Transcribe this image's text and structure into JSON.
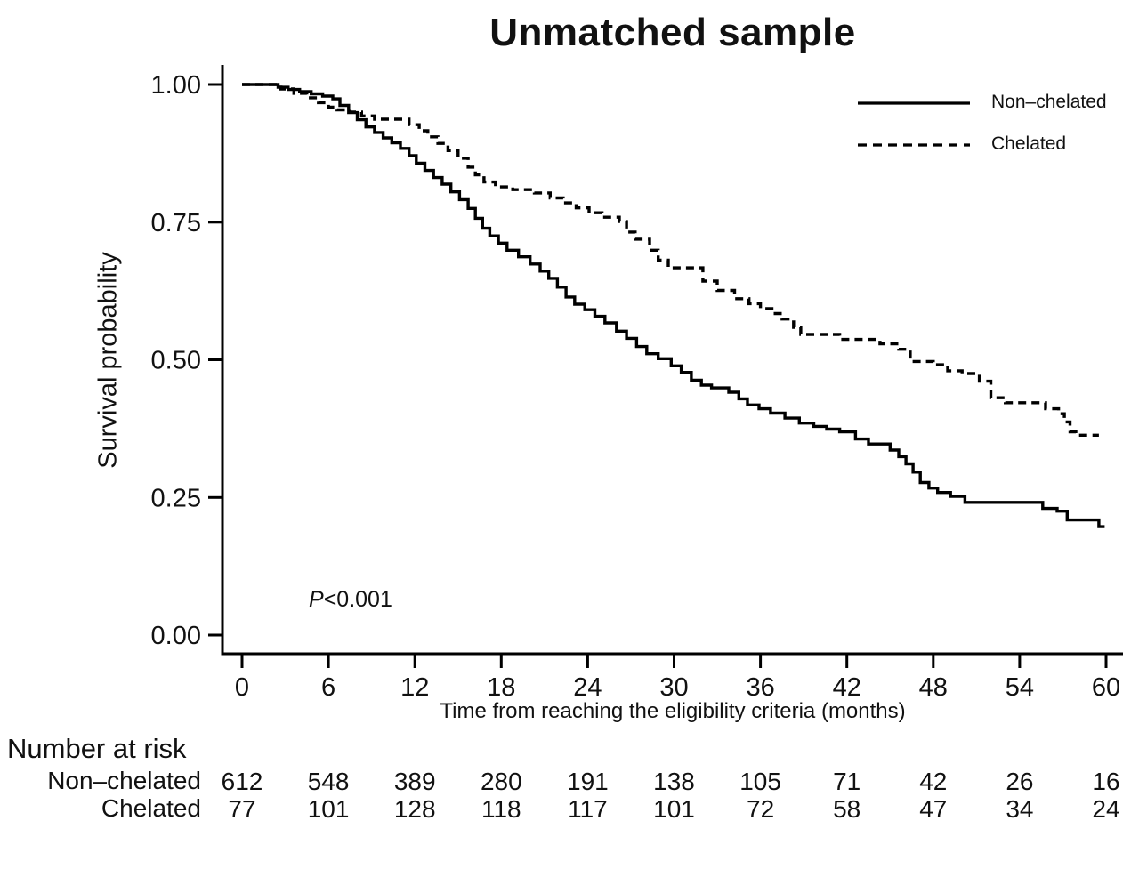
{
  "figure": {
    "background": "#ffffff",
    "line_color": "#000000",
    "text_color": "#111111"
  },
  "chart_data": {
    "type": "line",
    "subtype": "kaplan-meier-step",
    "title": "Unmatched sample",
    "xlabel": "Time from reaching the eligibility criteria (months)",
    "ylabel": "Survival probability",
    "xlim": [
      0,
      60
    ],
    "ylim": [
      0.0,
      1.0
    ],
    "grid": false,
    "legend_position": "top-right",
    "x_ticks": [
      {
        "value": 0,
        "label": "0"
      },
      {
        "value": 6,
        "label": "6"
      },
      {
        "value": 12,
        "label": "12"
      },
      {
        "value": 18,
        "label": "18"
      },
      {
        "value": 24,
        "label": "24"
      },
      {
        "value": 30,
        "label": "30"
      },
      {
        "value": 36,
        "label": "36"
      },
      {
        "value": 42,
        "label": "42"
      },
      {
        "value": 48,
        "label": "48"
      },
      {
        "value": 54,
        "label": "54"
      },
      {
        "value": 60,
        "label": "60"
      }
    ],
    "y_ticks": [
      {
        "value": 1.0,
        "label": "1.00"
      },
      {
        "value": 0.75,
        "label": "0.75"
      },
      {
        "value": 0.5,
        "label": "0.50"
      },
      {
        "value": 0.25,
        "label": "0.25"
      },
      {
        "value": 0.0,
        "label": "0.00"
      }
    ],
    "annotation": {
      "symbol": "P",
      "text": "<0.001"
    },
    "legend": [
      {
        "label": "Non–chelated",
        "line_style": "solid"
      },
      {
        "label": "Chelated",
        "line_style": "dashed"
      }
    ],
    "series": [
      {
        "name": "Non–chelated",
        "line_style": "solid",
        "end_time": 59.9,
        "points": [
          [
            0,
            1.0
          ],
          [
            2.5,
            0.995
          ],
          [
            3.2,
            0.991
          ],
          [
            4.0,
            0.987
          ],
          [
            4.8,
            0.983
          ],
          [
            5.6,
            0.979
          ],
          [
            6.3,
            0.974
          ],
          [
            6.8,
            0.962
          ],
          [
            7.4,
            0.949
          ],
          [
            8.0,
            0.936
          ],
          [
            8.6,
            0.923
          ],
          [
            9.2,
            0.913
          ],
          [
            9.8,
            0.903
          ],
          [
            10.4,
            0.894
          ],
          [
            11.0,
            0.884
          ],
          [
            11.6,
            0.871
          ],
          [
            12.1,
            0.857
          ],
          [
            12.7,
            0.844
          ],
          [
            13.3,
            0.831
          ],
          [
            13.9,
            0.819
          ],
          [
            14.5,
            0.805
          ],
          [
            15.1,
            0.791
          ],
          [
            15.7,
            0.775
          ],
          [
            16.2,
            0.757
          ],
          [
            16.7,
            0.739
          ],
          [
            17.2,
            0.725
          ],
          [
            17.8,
            0.712
          ],
          [
            18.4,
            0.699
          ],
          [
            19.2,
            0.687
          ],
          [
            20.0,
            0.674
          ],
          [
            20.7,
            0.661
          ],
          [
            21.3,
            0.648
          ],
          [
            21.9,
            0.632
          ],
          [
            22.5,
            0.614
          ],
          [
            23.1,
            0.601
          ],
          [
            23.8,
            0.591
          ],
          [
            24.5,
            0.579
          ],
          [
            25.2,
            0.567
          ],
          [
            26.0,
            0.552
          ],
          [
            26.7,
            0.539
          ],
          [
            27.4,
            0.524
          ],
          [
            28.1,
            0.511
          ],
          [
            28.9,
            0.502
          ],
          [
            29.8,
            0.489
          ],
          [
            30.5,
            0.477
          ],
          [
            31.2,
            0.463
          ],
          [
            31.9,
            0.454
          ],
          [
            32.6,
            0.449
          ],
          [
            33.8,
            0.441
          ],
          [
            34.5,
            0.429
          ],
          [
            35.1,
            0.418
          ],
          [
            35.9,
            0.411
          ],
          [
            36.7,
            0.403
          ],
          [
            37.7,
            0.394
          ],
          [
            38.7,
            0.385
          ],
          [
            39.7,
            0.379
          ],
          [
            40.6,
            0.374
          ],
          [
            41.5,
            0.369
          ],
          [
            42.6,
            0.356
          ],
          [
            43.5,
            0.347
          ],
          [
            45.0,
            0.336
          ],
          [
            45.6,
            0.324
          ],
          [
            46.1,
            0.311
          ],
          [
            46.6,
            0.296
          ],
          [
            47.1,
            0.277
          ],
          [
            47.7,
            0.267
          ],
          [
            48.3,
            0.259
          ],
          [
            49.2,
            0.252
          ],
          [
            50.2,
            0.241
          ],
          [
            55.6,
            0.23
          ],
          [
            56.6,
            0.225
          ],
          [
            57.3,
            0.209
          ],
          [
            59.5,
            0.197
          ]
        ]
      },
      {
        "name": "Chelated",
        "line_style": "dashed",
        "end_time": 59.5,
        "points": [
          [
            0,
            1.0
          ],
          [
            2.7,
            0.992
          ],
          [
            3.6,
            0.984
          ],
          [
            4.5,
            0.976
          ],
          [
            5.3,
            0.967
          ],
          [
            6.0,
            0.959
          ],
          [
            6.6,
            0.954
          ],
          [
            7.5,
            0.95
          ],
          [
            8.3,
            0.943
          ],
          [
            9.2,
            0.937
          ],
          [
            11.6,
            0.927
          ],
          [
            12.3,
            0.916
          ],
          [
            12.9,
            0.905
          ],
          [
            13.6,
            0.893
          ],
          [
            14.3,
            0.88
          ],
          [
            15.0,
            0.866
          ],
          [
            15.7,
            0.85
          ],
          [
            16.2,
            0.836
          ],
          [
            16.8,
            0.823
          ],
          [
            17.6,
            0.814
          ],
          [
            18.8,
            0.809
          ],
          [
            20.3,
            0.803
          ],
          [
            21.4,
            0.794
          ],
          [
            22.3,
            0.785
          ],
          [
            23.2,
            0.776
          ],
          [
            24.1,
            0.767
          ],
          [
            25.0,
            0.759
          ],
          [
            26.2,
            0.751
          ],
          [
            26.7,
            0.732
          ],
          [
            27.3,
            0.719
          ],
          [
            28.3,
            0.699
          ],
          [
            28.9,
            0.681
          ],
          [
            29.6,
            0.667
          ],
          [
            32.0,
            0.643
          ],
          [
            33.0,
            0.626
          ],
          [
            34.2,
            0.611
          ],
          [
            35.2,
            0.602
          ],
          [
            36.0,
            0.593
          ],
          [
            36.8,
            0.584
          ],
          [
            37.5,
            0.574
          ],
          [
            38.3,
            0.559
          ],
          [
            38.8,
            0.546
          ],
          [
            41.5,
            0.537
          ],
          [
            44.3,
            0.529
          ],
          [
            45.6,
            0.519
          ],
          [
            46.4,
            0.497
          ],
          [
            48.0,
            0.491
          ],
          [
            49.0,
            0.48
          ],
          [
            50.0,
            0.475
          ],
          [
            51.2,
            0.461
          ],
          [
            52.0,
            0.431
          ],
          [
            53.0,
            0.422
          ],
          [
            55.8,
            0.411
          ],
          [
            56.7,
            0.402
          ],
          [
            57.1,
            0.387
          ],
          [
            57.5,
            0.369
          ],
          [
            57.9,
            0.363
          ]
        ]
      }
    ],
    "risk_table": {
      "title": "Number at risk",
      "times": [
        0,
        6,
        12,
        18,
        24,
        30,
        36,
        42,
        48,
        54,
        60
      ],
      "rows": [
        {
          "label": "Non–chelated",
          "values": [
            612,
            548,
            389,
            280,
            191,
            138,
            105,
            71,
            42,
            26,
            16
          ]
        },
        {
          "label": "Chelated",
          "values": [
            77,
            101,
            128,
            118,
            117,
            101,
            72,
            58,
            47,
            34,
            24
          ]
        }
      ]
    }
  }
}
